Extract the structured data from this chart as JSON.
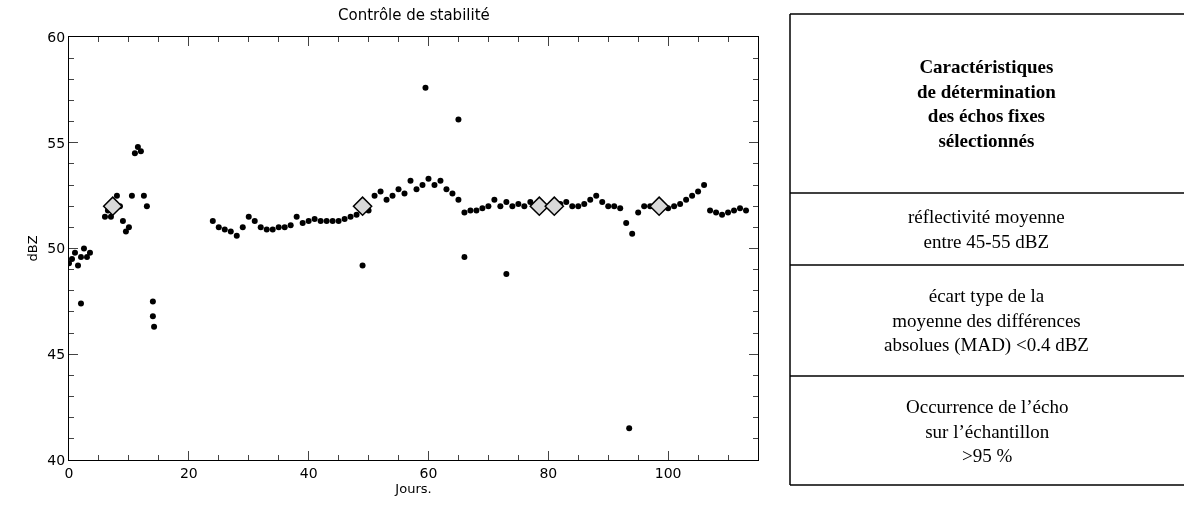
{
  "chart_data": [
    {
      "type": "scatter",
      "title": "Contrôle de stabilité",
      "xlabel": "Jours.",
      "ylabel": "dBZ",
      "xlim": [
        0,
        115
      ],
      "xticks": [
        0,
        20,
        40,
        60,
        80,
        100
      ],
      "ylim": [
        40,
        60
      ],
      "yticks": [
        40,
        45,
        50,
        55,
        60
      ],
      "series": [
        {
          "color": "#000000",
          "marker": "circle",
          "x": [
            0,
            0.5,
            1,
            1.5,
            2,
            2,
            2.5,
            3,
            3.5,
            6,
            6.5,
            7,
            8,
            8.5,
            9,
            9.5,
            10,
            10.5,
            11,
            11.5,
            12,
            12.5,
            13,
            14,
            14,
            14.2,
            24,
            25,
            26,
            27,
            28,
            29,
            30,
            31,
            32,
            33,
            34,
            35,
            36,
            37,
            38,
            39,
            40,
            41,
            42,
            43,
            44,
            45,
            46,
            47,
            48,
            49,
            50,
            51,
            52,
            53,
            54,
            55,
            56,
            57,
            58,
            59,
            59.5,
            60,
            61,
            62,
            63,
            64,
            65,
            65,
            66,
            66,
            67,
            68,
            69,
            70,
            71,
            72,
            73,
            73,
            74,
            75,
            76,
            77,
            82,
            83,
            84,
            85,
            86,
            87,
            88,
            89,
            90,
            91,
            92,
            93,
            93.5,
            94,
            95,
            96,
            97,
            100,
            101,
            102,
            103,
            104,
            105,
            106,
            107,
            108,
            109,
            110,
            111,
            112,
            113
          ],
          "values": [
            49.3,
            49.5,
            49.8,
            49.2,
            49.6,
            47.4,
            50.0,
            49.6,
            49.8,
            51.5,
            51.8,
            51.5,
            52.5,
            52.0,
            51.3,
            50.8,
            51.0,
            52.5,
            54.5,
            54.8,
            54.6,
            52.5,
            52.0,
            47.5,
            46.8,
            46.3,
            51.3,
            51.0,
            50.9,
            50.8,
            50.6,
            51.0,
            51.5,
            51.3,
            51.0,
            50.9,
            50.9,
            51.0,
            51.0,
            51.1,
            51.5,
            51.2,
            51.3,
            51.4,
            51.3,
            51.3,
            51.3,
            51.3,
            51.4,
            51.5,
            51.6,
            49.2,
            51.8,
            52.5,
            52.7,
            52.3,
            52.5,
            52.8,
            52.6,
            53.2,
            52.8,
            53.0,
            57.6,
            53.3,
            53.0,
            53.2,
            52.8,
            52.6,
            52.3,
            56.1,
            51.7,
            49.6,
            51.8,
            51.8,
            51.9,
            52.0,
            52.3,
            52.0,
            52.2,
            48.8,
            52.0,
            52.1,
            52.0,
            52.2,
            52.1,
            52.2,
            52.0,
            52.0,
            52.1,
            52.3,
            52.5,
            52.2,
            52.0,
            52.0,
            51.9,
            51.2,
            41.5,
            50.7,
            51.7,
            52.0,
            52.0,
            51.9,
            52.0,
            52.1,
            52.3,
            52.5,
            52.7,
            53.0,
            51.8,
            51.7,
            51.6,
            51.7,
            51.8,
            51.9,
            51.8
          ]
        },
        {
          "color": "#d9d9d9",
          "marker": "diamond",
          "x": [
            7.3,
            49,
            78.5,
            81,
            98.5
          ],
          "values": [
            52,
            52,
            52,
            52,
            52
          ]
        }
      ]
    },
    {
      "type": "other",
      "title": "Caractéristiques\nde détermination\ndes échos fixes\nsélectionnés",
      "annotations": [
        "réflectivité moyenne\nentre 45-55 dBZ",
        "écart type de la\nmoyenne des différences\nabsolues (MAD) <0.4 dBZ",
        "Occurrence de l’écho\nsur l’échantillon\n>95 %"
      ]
    }
  ]
}
